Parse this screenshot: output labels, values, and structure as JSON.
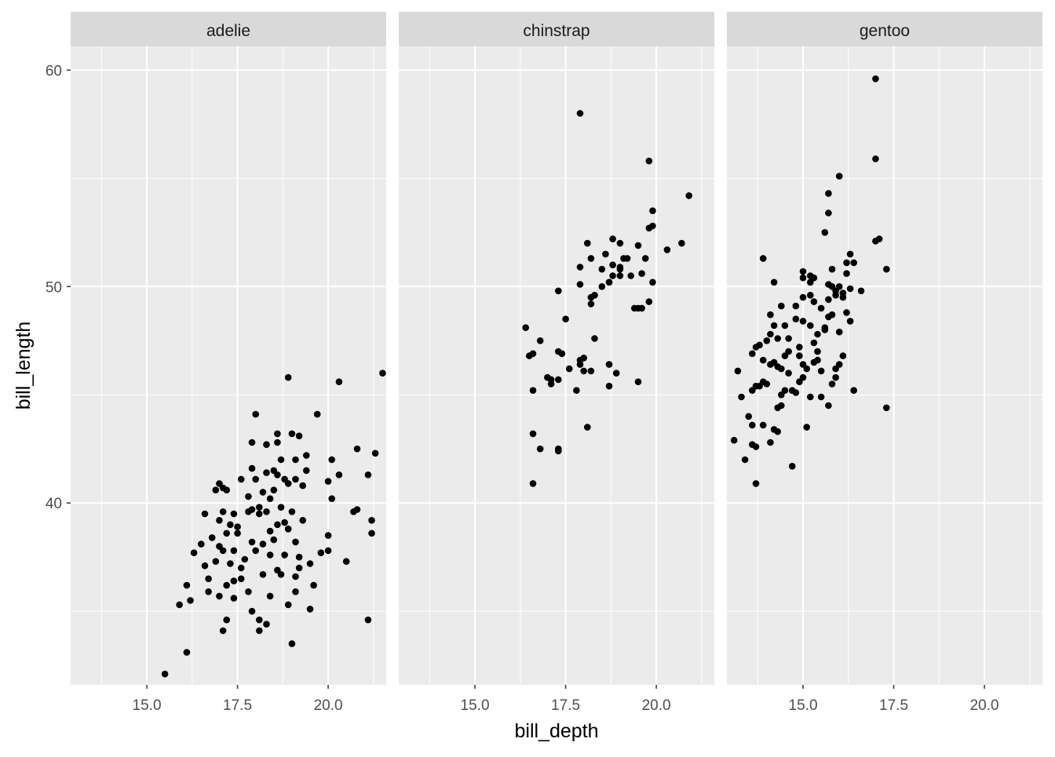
{
  "chart_data": {
    "type": "scatter",
    "xlabel": "bill_depth",
    "ylabel": "bill_length",
    "xlim": [
      12.9,
      21.6
    ],
    "ylim": [
      31.6,
      61.1
    ],
    "x_ticks": [
      15.0,
      17.5,
      20.0
    ],
    "x_tick_labels": [
      "15.0",
      "17.5",
      "20.0"
    ],
    "y_ticks": [
      40,
      50,
      60
    ],
    "y_tick_labels": [
      "40",
      "50",
      "60"
    ],
    "panel_background": "#ebebeb",
    "strip_background": "#d9d9d9",
    "grid_color": "#ffffff",
    "point_color": "#000000",
    "facets": [
      {
        "label": "adelie",
        "points": [
          [
            15.5,
            32.1
          ],
          [
            16.1,
            33.1
          ],
          [
            17.1,
            34.1
          ],
          [
            17.2,
            34.6
          ],
          [
            18.3,
            34.4
          ],
          [
            18.1,
            34.1
          ],
          [
            19.0,
            33.5
          ],
          [
            18.1,
            34.6
          ],
          [
            17.9,
            35.0
          ],
          [
            19.5,
            35.1
          ],
          [
            21.1,
            34.6
          ],
          [
            15.9,
            35.3
          ],
          [
            16.2,
            35.5
          ],
          [
            16.7,
            35.9
          ],
          [
            17.0,
            35.7
          ],
          [
            17.4,
            35.6
          ],
          [
            17.8,
            35.9
          ],
          [
            18.4,
            35.7
          ],
          [
            18.9,
            35.3
          ],
          [
            19.1,
            35.9
          ],
          [
            19.6,
            36.2
          ],
          [
            16.1,
            36.2
          ],
          [
            16.7,
            36.5
          ],
          [
            17.2,
            36.2
          ],
          [
            17.6,
            36.5
          ],
          [
            18.2,
            36.7
          ],
          [
            18.6,
            36.9
          ],
          [
            19.2,
            37.0
          ],
          [
            19.5,
            37.2
          ],
          [
            20.5,
            37.3
          ],
          [
            16.3,
            37.7
          ],
          [
            16.6,
            37.1
          ],
          [
            16.9,
            37.3
          ],
          [
            17.1,
            37.8
          ],
          [
            17.4,
            37.8
          ],
          [
            17.6,
            37.0
          ],
          [
            18.0,
            37.8
          ],
          [
            18.4,
            37.6
          ],
          [
            18.8,
            37.6
          ],
          [
            19.2,
            37.5
          ],
          [
            19.8,
            37.7
          ],
          [
            20.0,
            37.8
          ],
          [
            16.5,
            38.1
          ],
          [
            17.0,
            38.0
          ],
          [
            17.2,
            38.6
          ],
          [
            17.5,
            38.6
          ],
          [
            17.9,
            38.2
          ],
          [
            18.2,
            38.1
          ],
          [
            18.5,
            38.3
          ],
          [
            18.9,
            38.8
          ],
          [
            19.1,
            38.2
          ],
          [
            20.0,
            38.5
          ],
          [
            21.2,
            38.6
          ],
          [
            16.8,
            38.4
          ],
          [
            16.6,
            39.5
          ],
          [
            17.0,
            39.2
          ],
          [
            17.3,
            39.0
          ],
          [
            17.5,
            38.9
          ],
          [
            17.8,
            39.6
          ],
          [
            18.1,
            39.5
          ],
          [
            18.3,
            39.6
          ],
          [
            18.6,
            39.0
          ],
          [
            18.9,
            38.8
          ],
          [
            19.3,
            39.2
          ],
          [
            20.7,
            39.6
          ],
          [
            21.2,
            39.2
          ],
          [
            17.1,
            39.6
          ],
          [
            17.4,
            39.5
          ],
          [
            17.9,
            39.7
          ],
          [
            18.1,
            39.8
          ],
          [
            18.4,
            40.2
          ],
          [
            18.7,
            39.8
          ],
          [
            19.0,
            39.6
          ],
          [
            20.8,
            39.7
          ],
          [
            16.9,
            40.6
          ],
          [
            17.2,
            40.6
          ],
          [
            17.8,
            40.3
          ],
          [
            18.2,
            40.5
          ],
          [
            18.5,
            40.6
          ],
          [
            18.9,
            40.9
          ],
          [
            19.3,
            40.8
          ],
          [
            20.1,
            40.2
          ],
          [
            17.0,
            40.9
          ],
          [
            17.6,
            41.1
          ],
          [
            18.0,
            41.1
          ],
          [
            18.3,
            41.4
          ],
          [
            18.6,
            41.3
          ],
          [
            19.1,
            41.1
          ],
          [
            20.0,
            41.0
          ],
          [
            21.1,
            41.3
          ],
          [
            17.9,
            41.6
          ],
          [
            18.5,
            41.5
          ],
          [
            18.8,
            41.1
          ],
          [
            19.4,
            41.5
          ],
          [
            20.3,
            41.3
          ],
          [
            18.3,
            42.7
          ],
          [
            18.7,
            42.0
          ],
          [
            19.1,
            42.0
          ],
          [
            19.4,
            42.2
          ],
          [
            20.1,
            42.0
          ],
          [
            20.8,
            42.5
          ],
          [
            21.3,
            42.3
          ],
          [
            17.9,
            42.8
          ],
          [
            18.6,
            42.8
          ],
          [
            18.6,
            43.2
          ],
          [
            19.0,
            43.2
          ],
          [
            19.2,
            43.1
          ],
          [
            17.1,
            40.7
          ],
          [
            18.0,
            44.1
          ],
          [
            19.7,
            44.1
          ],
          [
            18.9,
            45.8
          ],
          [
            20.3,
            45.6
          ],
          [
            21.5,
            46.0
          ],
          [
            17.4,
            36.4
          ],
          [
            17.3,
            37.2
          ],
          [
            18.7,
            36.7
          ],
          [
            19.1,
            36.6
          ],
          [
            17.7,
            37.4
          ],
          [
            18.4,
            38.7
          ],
          [
            18.8,
            39.1
          ]
        ]
      },
      {
        "label": "chinstrap",
        "points": [
          [
            16.6,
            40.9
          ],
          [
            16.6,
            43.2
          ],
          [
            16.8,
            42.5
          ],
          [
            17.3,
            42.4
          ],
          [
            17.3,
            42.5
          ],
          [
            18.1,
            43.5
          ],
          [
            16.6,
            45.2
          ],
          [
            17.1,
            45.5
          ],
          [
            17.1,
            45.7
          ],
          [
            17.3,
            45.7
          ],
          [
            17.8,
            45.2
          ],
          [
            18.0,
            46.1
          ],
          [
            17.9,
            46.4
          ],
          [
            18.2,
            46.1
          ],
          [
            17.0,
            45.8
          ],
          [
            17.4,
            46.9
          ],
          [
            17.6,
            46.2
          ],
          [
            17.9,
            46.6
          ],
          [
            18.0,
            46.7
          ],
          [
            18.7,
            46.4
          ],
          [
            18.9,
            46.0
          ],
          [
            19.5,
            45.6
          ],
          [
            18.7,
            45.4
          ],
          [
            16.5,
            46.8
          ],
          [
            16.6,
            46.9
          ],
          [
            17.3,
            47.0
          ],
          [
            16.4,
            48.1
          ],
          [
            16.8,
            47.5
          ],
          [
            17.5,
            48.5
          ],
          [
            18.3,
            47.6
          ],
          [
            17.3,
            49.8
          ],
          [
            17.9,
            50.1
          ],
          [
            18.2,
            49.5
          ],
          [
            18.2,
            49.2
          ],
          [
            18.5,
            50.0
          ],
          [
            18.7,
            50.2
          ],
          [
            18.8,
            50.5
          ],
          [
            18.7,
            50.2
          ],
          [
            17.9,
            50.9
          ],
          [
            18.2,
            51.3
          ],
          [
            18.5,
            50.8
          ],
          [
            18.6,
            51.5
          ],
          [
            18.8,
            51.0
          ],
          [
            18.8,
            52.2
          ],
          [
            19.0,
            52.0
          ],
          [
            19.0,
            50.9
          ],
          [
            19.1,
            51.3
          ],
          [
            19.2,
            51.3
          ],
          [
            19.0,
            50.8
          ],
          [
            19.3,
            50.5
          ],
          [
            19.4,
            49.0
          ],
          [
            19.5,
            49.0
          ],
          [
            19.5,
            51.9
          ],
          [
            19.6,
            49.0
          ],
          [
            19.8,
            49.3
          ],
          [
            19.9,
            50.2
          ],
          [
            19.7,
            51.3
          ],
          [
            19.6,
            50.6
          ],
          [
            19.8,
            52.7
          ],
          [
            19.9,
            52.8
          ],
          [
            20.3,
            51.7
          ],
          [
            20.7,
            52.0
          ],
          [
            18.1,
            52.0
          ],
          [
            19.9,
            53.5
          ],
          [
            20.9,
            54.2
          ],
          [
            19.8,
            55.8
          ],
          [
            17.9,
            58.0
          ],
          [
            18.3,
            49.6
          ],
          [
            19.0,
            50.5
          ]
        ]
      },
      {
        "label": "gentoo",
        "points": [
          [
            13.1,
            42.9
          ],
          [
            13.4,
            42.0
          ],
          [
            13.7,
            40.9
          ],
          [
            13.6,
            42.7
          ],
          [
            13.7,
            42.6
          ],
          [
            13.9,
            43.6
          ],
          [
            14.1,
            42.8
          ],
          [
            14.2,
            43.4
          ],
          [
            14.3,
            43.3
          ],
          [
            14.7,
            41.7
          ],
          [
            14.5,
            45.2
          ],
          [
            14.4,
            45.0
          ],
          [
            13.2,
            46.1
          ],
          [
            13.3,
            44.9
          ],
          [
            13.5,
            44.0
          ],
          [
            13.6,
            45.2
          ],
          [
            13.7,
            45.4
          ],
          [
            13.8,
            45.4
          ],
          [
            13.9,
            45.6
          ],
          [
            14.0,
            45.5
          ],
          [
            14.1,
            46.4
          ],
          [
            14.2,
            46.5
          ],
          [
            14.3,
            46.3
          ],
          [
            14.4,
            46.2
          ],
          [
            14.5,
            46.8
          ],
          [
            14.6,
            46.0
          ],
          [
            14.7,
            45.2
          ],
          [
            14.8,
            45.1
          ],
          [
            14.9,
            45.6
          ],
          [
            15.0,
            45.8
          ],
          [
            15.1,
            46.2
          ],
          [
            15.2,
            44.9
          ],
          [
            15.3,
            46.5
          ],
          [
            15.4,
            46.6
          ],
          [
            15.5,
            44.9
          ],
          [
            15.7,
            44.5
          ],
          [
            15.8,
            45.5
          ],
          [
            15.9,
            46.2
          ],
          [
            16.0,
            46.4
          ],
          [
            16.1,
            46.8
          ],
          [
            15.5,
            46.1
          ],
          [
            15.0,
            46.4
          ],
          [
            13.6,
            46.9
          ],
          [
            13.7,
            47.2
          ],
          [
            13.8,
            47.3
          ],
          [
            14.0,
            47.5
          ],
          [
            14.1,
            47.8
          ],
          [
            14.2,
            48.2
          ],
          [
            14.3,
            47.6
          ],
          [
            14.5,
            48.2
          ],
          [
            14.6,
            47.6
          ],
          [
            14.8,
            48.5
          ],
          [
            14.9,
            47.2
          ],
          [
            15.0,
            48.4
          ],
          [
            15.2,
            48.2
          ],
          [
            15.3,
            47.4
          ],
          [
            15.4,
            47.8
          ],
          [
            15.6,
            48.1
          ],
          [
            15.7,
            48.6
          ],
          [
            14.1,
            48.7
          ],
          [
            14.4,
            49.1
          ],
          [
            14.8,
            49.1
          ],
          [
            15.0,
            49.5
          ],
          [
            15.3,
            49.3
          ],
          [
            15.5,
            49.0
          ],
          [
            15.7,
            49.4
          ],
          [
            15.8,
            48.7
          ],
          [
            15.9,
            49.6
          ],
          [
            16.1,
            49.5
          ],
          [
            16.2,
            48.8
          ],
          [
            16.3,
            48.4
          ],
          [
            15.2,
            49.6
          ],
          [
            15.0,
            50.4
          ],
          [
            15.2,
            50.2
          ],
          [
            15.2,
            50.5
          ],
          [
            15.3,
            50.4
          ],
          [
            15.7,
            50.1
          ],
          [
            15.8,
            50.0
          ],
          [
            15.9,
            49.8
          ],
          [
            16.0,
            50.0
          ],
          [
            16.1,
            49.7
          ],
          [
            16.3,
            49.9
          ],
          [
            16.6,
            49.8
          ],
          [
            15.0,
            50.7
          ],
          [
            15.8,
            50.8
          ],
          [
            16.2,
            51.1
          ],
          [
            16.3,
            51.5
          ],
          [
            16.4,
            51.1
          ],
          [
            17.3,
            50.8
          ],
          [
            14.2,
            50.2
          ],
          [
            13.9,
            51.3
          ],
          [
            15.6,
            52.5
          ],
          [
            17.0,
            52.1
          ],
          [
            17.1,
            52.2
          ],
          [
            15.7,
            53.4
          ],
          [
            15.7,
            54.3
          ],
          [
            16.0,
            55.1
          ],
          [
            17.0,
            55.9
          ],
          [
            17.0,
            59.6
          ],
          [
            17.3,
            44.4
          ],
          [
            16.4,
            45.2
          ],
          [
            15.9,
            45.8
          ],
          [
            15.1,
            43.5
          ],
          [
            14.3,
            44.4
          ],
          [
            13.6,
            43.6
          ],
          [
            14.6,
            47.0
          ],
          [
            15.4,
            47.0
          ],
          [
            16.0,
            47.9
          ],
          [
            13.9,
            46.6
          ],
          [
            14.4,
            44.5
          ],
          [
            14.9,
            46.8
          ],
          [
            15.6,
            48.0
          ],
          [
            16.2,
            50.6
          ]
        ]
      }
    ]
  }
}
